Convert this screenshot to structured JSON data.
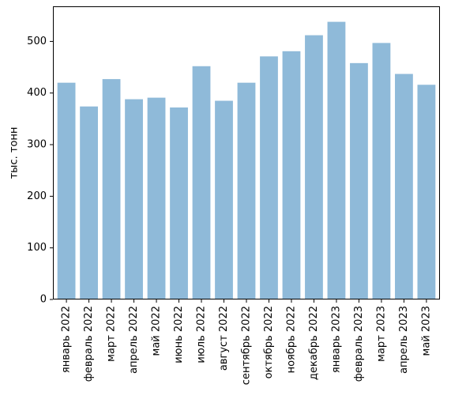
{
  "chart_data": {
    "type": "bar",
    "categories": [
      "январь 2022",
      "февраль 2022",
      "март 2022",
      "апрель 2022",
      "май 2022",
      "июнь 2022",
      "июль 2022",
      "август 2022",
      "сентябрь 2022",
      "октябрь 2022",
      "ноябрь 2022",
      "декабрь 2022",
      "январь 2023",
      "февраль 2023",
      "март 2023",
      "апрель 2023",
      "май 2023"
    ],
    "values": [
      420,
      374,
      427,
      388,
      391,
      372,
      452,
      385,
      420,
      471,
      481,
      512,
      538,
      458,
      497,
      437,
      416
    ],
    "ylabel": "тыс. тонн",
    "ylim": [
      0,
      568
    ],
    "yticks": [
      0,
      100,
      200,
      300,
      400,
      500
    ],
    "bar_color": "#8fbad9",
    "grid": false,
    "legend": "none"
  }
}
